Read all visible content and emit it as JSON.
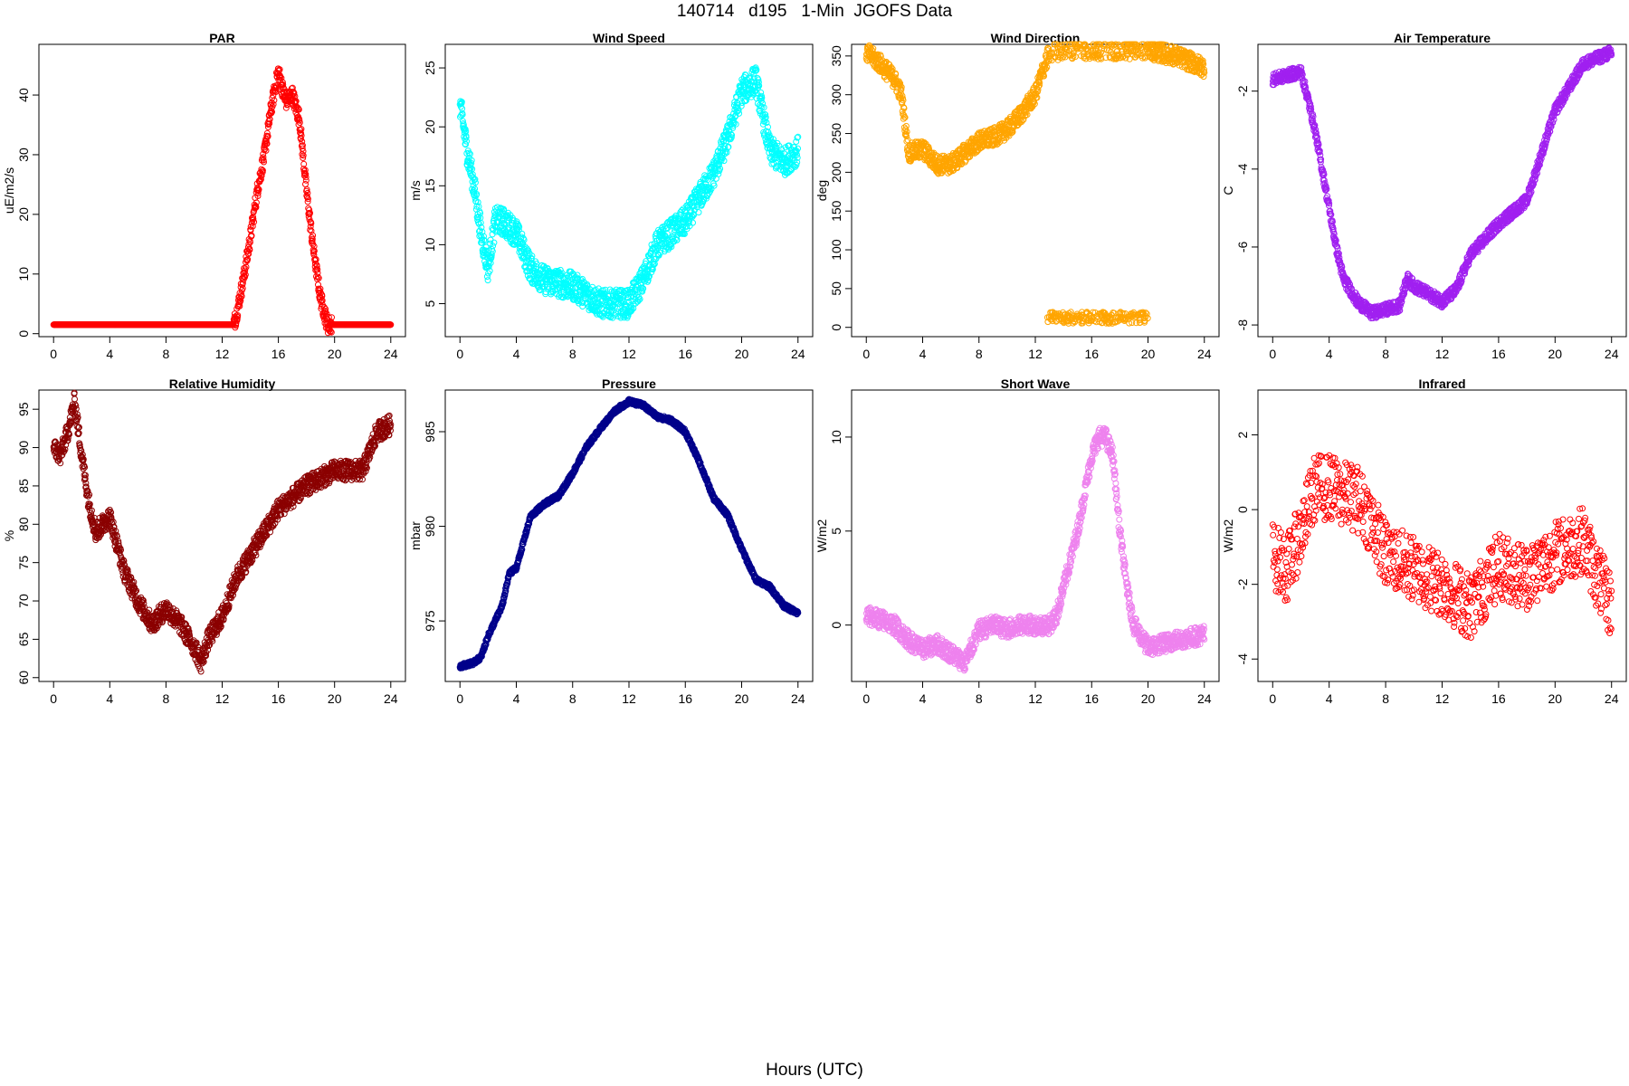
{
  "title": "140714   d195   1-Min  JGOFS Data",
  "xlabel": "Hours (UTC)",
  "chart_data": [
    {
      "type": "scatter",
      "title": "PAR",
      "ylabel": "uE/m2/s",
      "color": "#ff0000",
      "xlim": [
        0,
        24
      ],
      "ylim": [
        -0.5,
        48.5
      ],
      "xticks": [
        0,
        4,
        8,
        12,
        16,
        20,
        24
      ],
      "yticks": [
        0,
        10,
        20,
        30,
        40
      ],
      "x": [
        0,
        12.8,
        13.0,
        13.5,
        14.0,
        14.5,
        15.0,
        15.5,
        16.0,
        16.5,
        17.0,
        17.5,
        18.0,
        18.5,
        19.0,
        19.5,
        20,
        24
      ],
      "y": [
        1.5,
        1.5,
        3,
        9,
        16,
        24,
        30,
        38,
        44,
        39,
        40,
        36,
        24,
        14,
        6,
        1.5,
        1.5,
        1.5
      ],
      "noise": 1.5,
      "npts": 1440
    },
    {
      "type": "scatter",
      "title": "Wind Speed",
      "ylabel": "m/s",
      "color": "#00ffff",
      "xlim": [
        0,
        24
      ],
      "ylim": [
        2.2,
        27
      ],
      "xticks": [
        0,
        4,
        8,
        12,
        16,
        20,
        24
      ],
      "yticks": [
        5,
        10,
        15,
        20,
        25
      ],
      "x": [
        0,
        0.5,
        1,
        1.5,
        2,
        2.5,
        3,
        4,
        5,
        6,
        8,
        10,
        12,
        13,
        14,
        16,
        18,
        19,
        20,
        21,
        22,
        23,
        24
      ],
      "y": [
        22,
        18,
        15,
        11,
        8,
        12,
        12,
        11,
        8,
        7,
        6.5,
        5,
        5,
        7,
        10,
        12,
        16,
        19,
        23,
        24,
        18,
        17,
        18
      ],
      "noise": 1.2,
      "npts": 1440
    },
    {
      "type": "scatter",
      "title": "Wind Direction",
      "ylabel": "deg",
      "color": "#ffa500",
      "xlim": [
        0,
        24
      ],
      "ylim": [
        -12,
        365
      ],
      "xticks": [
        0,
        4,
        8,
        12,
        16,
        20,
        24
      ],
      "yticks": [
        0,
        50,
        100,
        150,
        200,
        250,
        300,
        350
      ],
      "x": [
        0,
        1,
        2,
        2.5,
        3,
        4,
        5,
        6,
        7,
        8,
        9,
        10,
        11,
        12,
        12.5,
        13,
        14,
        16,
        18,
        19,
        20,
        22,
        24
      ],
      "y": [
        355,
        340,
        320,
        300,
        225,
        230,
        210,
        210,
        225,
        240,
        245,
        255,
        275,
        300,
        330,
        355,
        358,
        358,
        357,
        358,
        358,
        350,
        335
      ],
      "noise": 12,
      "npts": 1440
    },
    {
      "type": "scatter",
      "title": "Air Temperature",
      "ylabel": "C",
      "color": "#a020f0",
      "xlim": [
        0,
        24
      ],
      "ylim": [
        -8.3,
        -0.8
      ],
      "xticks": [
        0,
        4,
        8,
        12,
        16,
        20,
        24
      ],
      "yticks": [
        -2,
        -4,
        -6,
        -8
      ],
      "x": [
        0,
        1,
        2,
        2.5,
        3,
        3.5,
        4,
        4.5,
        5,
        6,
        7,
        8,
        9,
        9.5,
        10,
        11,
        12,
        13,
        14,
        16,
        18,
        20,
        22,
        24
      ],
      "y": [
        -1.7,
        -1.6,
        -1.5,
        -2.2,
        -3,
        -4,
        -5,
        -6,
        -6.8,
        -7.4,
        -7.7,
        -7.6,
        -7.5,
        -6.8,
        -7,
        -7.2,
        -7.4,
        -7.1,
        -6.2,
        -5.4,
        -4.8,
        -2.5,
        -1.3,
        -1.0
      ],
      "noise": 0.15,
      "npts": 1440
    },
    {
      "type": "scatter",
      "title": "Relative Humidity",
      "ylabel": "%",
      "color": "#8b0000",
      "xlim": [
        0,
        24
      ],
      "ylim": [
        59.5,
        97.5
      ],
      "xticks": [
        0,
        4,
        8,
        12,
        16,
        20,
        24
      ],
      "yticks": [
        60,
        65,
        70,
        75,
        80,
        85,
        90,
        95
      ],
      "x": [
        0,
        0.5,
        1,
        1.5,
        2,
        2.5,
        3,
        4,
        5,
        6,
        7,
        8,
        9,
        10,
        10.5,
        11,
        12,
        13,
        14,
        15,
        16,
        18,
        20,
        22,
        23,
        24
      ],
      "y": [
        90,
        89,
        92,
        96,
        89,
        83,
        79,
        81,
        74,
        70,
        67,
        69,
        67,
        64,
        62,
        65,
        68,
        73,
        76,
        79,
        82,
        85,
        87,
        87,
        92,
        93
      ],
      "noise": 1.3,
      "npts": 1440
    },
    {
      "type": "scatter",
      "title": "Pressure",
      "ylabel": "mbar",
      "color": "#00008b",
      "xlim": [
        0,
        24
      ],
      "ylim": [
        971.8,
        987.2
      ],
      "xticks": [
        0,
        4,
        8,
        12,
        16,
        20,
        24
      ],
      "yticks": [
        975,
        980,
        985
      ],
      "x": [
        0,
        1,
        1.5,
        2,
        3,
        3.5,
        4,
        5,
        6,
        7,
        8,
        9,
        10,
        11,
        12,
        13,
        14,
        15,
        16,
        17,
        18,
        19,
        20,
        21,
        22,
        23,
        24
      ],
      "y": [
        972.6,
        972.8,
        973.1,
        974.2,
        975.8,
        977.5,
        977.8,
        980.5,
        981.2,
        981.6,
        982.8,
        984.2,
        985.2,
        986.1,
        986.6,
        986.4,
        985.8,
        985.6,
        985.0,
        983.4,
        981.5,
        980.6,
        978.8,
        977.2,
        976.8,
        975.8,
        975.4
      ],
      "noise": 0.12,
      "npts": 1440
    },
    {
      "type": "scatter",
      "title": "Short Wave",
      "ylabel": "W/m2",
      "color": "#ee82ee",
      "xlim": [
        0,
        24
      ],
      "ylim": [
        -3.0,
        12.5
      ],
      "xticks": [
        0,
        4,
        8,
        12,
        16,
        20,
        24
      ],
      "yticks": [
        0,
        5,
        10
      ],
      "x": [
        0,
        1,
        2,
        3,
        4,
        5,
        6,
        7,
        8,
        9,
        10,
        11,
        12,
        13,
        13.5,
        14,
        15,
        16,
        16.5,
        17,
        17.5,
        18,
        18.5,
        19,
        20,
        22,
        24
      ],
      "y": [
        0.5,
        0.3,
        0,
        -0.8,
        -1.3,
        -1,
        -1.5,
        -2,
        -0.3,
        0,
        -0.2,
        0,
        0,
        0,
        0.5,
        2,
        5,
        9,
        10,
        10,
        9,
        5,
        2,
        0,
        -1.2,
        -0.8,
        -0.5
      ],
      "noise": 0.5,
      "npts": 1440
    },
    {
      "type": "scatter",
      "title": "Infrared",
      "ylabel": "W/m2",
      "color": "#ff0000",
      "xlim": [
        0,
        24
      ],
      "ylim": [
        -4.6,
        3.2
      ],
      "xticks": [
        0,
        4,
        8,
        12,
        16,
        20,
        24
      ],
      "yticks": [
        -4,
        -2,
        0,
        2
      ],
      "x": [
        0,
        1,
        2,
        3,
        4,
        5,
        6,
        7,
        8,
        10,
        12,
        14,
        16,
        18,
        20,
        22,
        23,
        24
      ],
      "y": [
        -1.2,
        -1.6,
        -0.6,
        0.6,
        0.6,
        0.4,
        0.3,
        -0.3,
        -1.2,
        -1.6,
        -2.0,
        -2.6,
        -1.5,
        -1.8,
        -1.2,
        -0.8,
        -1.8,
        -2.6
      ],
      "noise": 0.9,
      "npts": 900
    }
  ]
}
